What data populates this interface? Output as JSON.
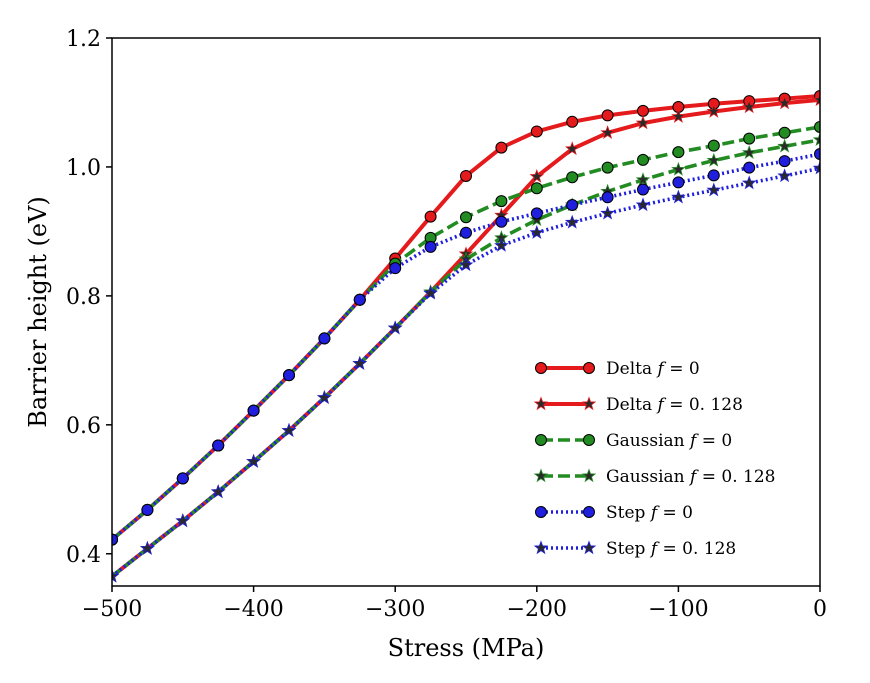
{
  "chart_data": {
    "type": "line",
    "title": "",
    "xlabel": "Stress (MPa)",
    "ylabel": "Barrier height (eV)",
    "xlim": [
      -500,
      0
    ],
    "ylim": [
      0.35,
      1.2
    ],
    "xticks": [
      -500,
      -400,
      -300,
      -200,
      -100,
      0
    ],
    "xtick_labels": [
      "−500",
      "−400",
      "−300",
      "−200",
      "−100",
      "0"
    ],
    "yticks": [
      0.4,
      0.6,
      0.8,
      1.0,
      1.2
    ],
    "ytick_labels": [
      "0.4",
      "0.6",
      "0.8",
      "1.0",
      "1.2"
    ],
    "grid": false,
    "legend_position": "lower-right",
    "x": [
      -500,
      -475,
      -450,
      -425,
      -400,
      -375,
      -350,
      -325,
      -300,
      -275,
      -250,
      -225,
      -200,
      -175,
      -150,
      -125,
      -100,
      -75,
      -50,
      -25,
      0
    ],
    "series": [
      {
        "name": "Delta f = 0",
        "legend_prefix": "Delta ",
        "legend_f": "f",
        "legend_suffix": " = 0",
        "color": "#e41a1c",
        "linestyle": "solid",
        "marker": "circle",
        "values": [
          0.422,
          0.468,
          0.517,
          0.568,
          0.622,
          0.677,
          0.734,
          0.794,
          0.858,
          0.923,
          0.986,
          1.03,
          1.055,
          1.07,
          1.08,
          1.087,
          1.093,
          1.098,
          1.102,
          1.106,
          1.11
        ]
      },
      {
        "name": "Delta f = 0. 128",
        "legend_prefix": "Delta ",
        "legend_f": "f",
        "legend_suffix": " = 0. 128",
        "color": "#e41a1c",
        "linestyle": "solid",
        "marker": "star",
        "values": [
          0.365,
          0.408,
          0.451,
          0.496,
          0.543,
          0.591,
          0.642,
          0.695,
          0.75,
          0.806,
          0.865,
          0.925,
          0.985,
          1.028,
          1.053,
          1.068,
          1.078,
          1.086,
          1.093,
          1.099,
          1.104
        ]
      },
      {
        "name": "Gaussian f = 0",
        "legend_prefix": "Gaussian ",
        "legend_f": "f",
        "legend_suffix": " = 0",
        "color": "#228b22",
        "linestyle": "dashed",
        "marker": "circle",
        "values": [
          0.422,
          0.468,
          0.517,
          0.568,
          0.622,
          0.677,
          0.734,
          0.794,
          0.85,
          0.89,
          0.922,
          0.947,
          0.967,
          0.984,
          0.999,
          1.011,
          1.023,
          1.033,
          1.044,
          1.053,
          1.062
        ]
      },
      {
        "name": "Gaussian f = 0. 128",
        "legend_prefix": "Gaussian ",
        "legend_f": "f",
        "legend_suffix": " = 0. 128",
        "color": "#228b22",
        "linestyle": "dashed",
        "marker": "star",
        "values": [
          0.365,
          0.408,
          0.451,
          0.496,
          0.543,
          0.591,
          0.642,
          0.695,
          0.75,
          0.806,
          0.857,
          0.89,
          0.918,
          0.941,
          0.962,
          0.98,
          0.996,
          1.01,
          1.022,
          1.032,
          1.042
        ]
      },
      {
        "name": "Step f = 0",
        "legend_prefix": "Step ",
        "legend_f": "f",
        "legend_suffix": " = 0",
        "color": "#1f1fdd",
        "linestyle": "dotted",
        "marker": "circle",
        "values": [
          0.422,
          0.468,
          0.517,
          0.568,
          0.622,
          0.677,
          0.734,
          0.794,
          0.843,
          0.876,
          0.898,
          0.915,
          0.928,
          0.941,
          0.953,
          0.965,
          0.976,
          0.987,
          0.999,
          1.009,
          1.02
        ]
      },
      {
        "name": "Step f = 0. 128",
        "legend_prefix": "Step ",
        "legend_f": "f",
        "legend_suffix": " = 0. 128",
        "color": "#1f1fdd",
        "linestyle": "dotted",
        "marker": "star",
        "values": [
          0.365,
          0.408,
          0.451,
          0.496,
          0.543,
          0.591,
          0.642,
          0.695,
          0.75,
          0.804,
          0.848,
          0.878,
          0.898,
          0.914,
          0.928,
          0.941,
          0.953,
          0.964,
          0.975,
          0.986,
          0.998
        ]
      }
    ]
  }
}
